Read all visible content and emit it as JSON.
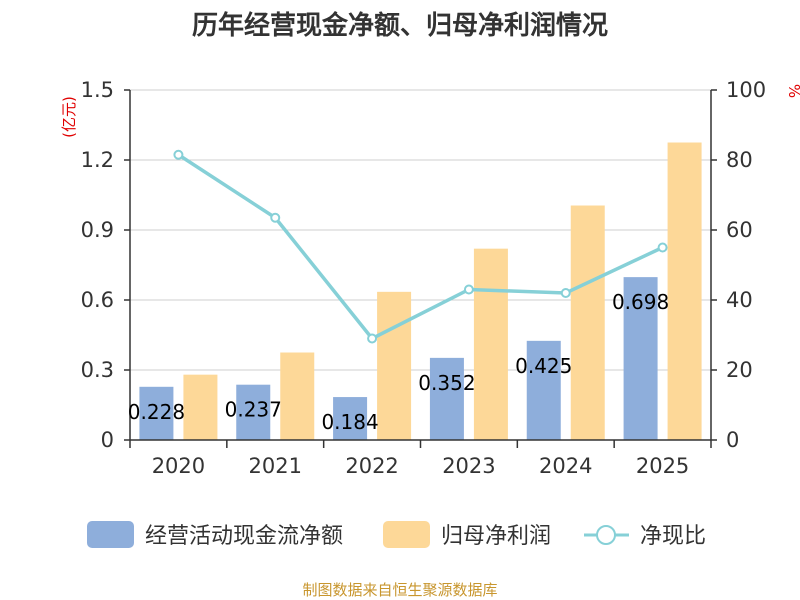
{
  "chart_data": {
    "type": "bar",
    "title": "历年经营现金净额、归母净利润情况",
    "categories": [
      "2020",
      "2021",
      "2022",
      "2023",
      "2024",
      "2025"
    ],
    "left_axis": {
      "unit": "(亿元)",
      "ylim": [
        0,
        1.5
      ],
      "ticks": [
        "0",
        "0.3",
        "0.6",
        "0.9",
        "1.2",
        "1.5"
      ]
    },
    "right_axis": {
      "unit": "%",
      "ylim": [
        0,
        100
      ],
      "ticks": [
        "0",
        "20",
        "40",
        "60",
        "80",
        "100"
      ]
    },
    "series": [
      {
        "name": "经营活动现金流净额",
        "kind": "bar",
        "axis": "left",
        "color": "#8eaedb",
        "values": [
          0.228,
          0.237,
          0.184,
          0.352,
          0.425,
          0.698
        ],
        "labels": [
          "0.228",
          "0.237",
          "0.184",
          "0.352",
          "0.425",
          "0.698"
        ]
      },
      {
        "name": "归母净利润",
        "kind": "bar",
        "axis": "left",
        "color": "#fdd898",
        "values": [
          0.28,
          0.375,
          0.635,
          0.82,
          1.005,
          1.275
        ]
      },
      {
        "name": "净现比",
        "kind": "line",
        "axis": "right",
        "color": "#86d0d7",
        "values": [
          81.5,
          63.5,
          29,
          43,
          42,
          55
        ]
      }
    ],
    "grid": true,
    "legend_position": "bottom"
  },
  "source": "制图数据来自恒生聚源数据库"
}
